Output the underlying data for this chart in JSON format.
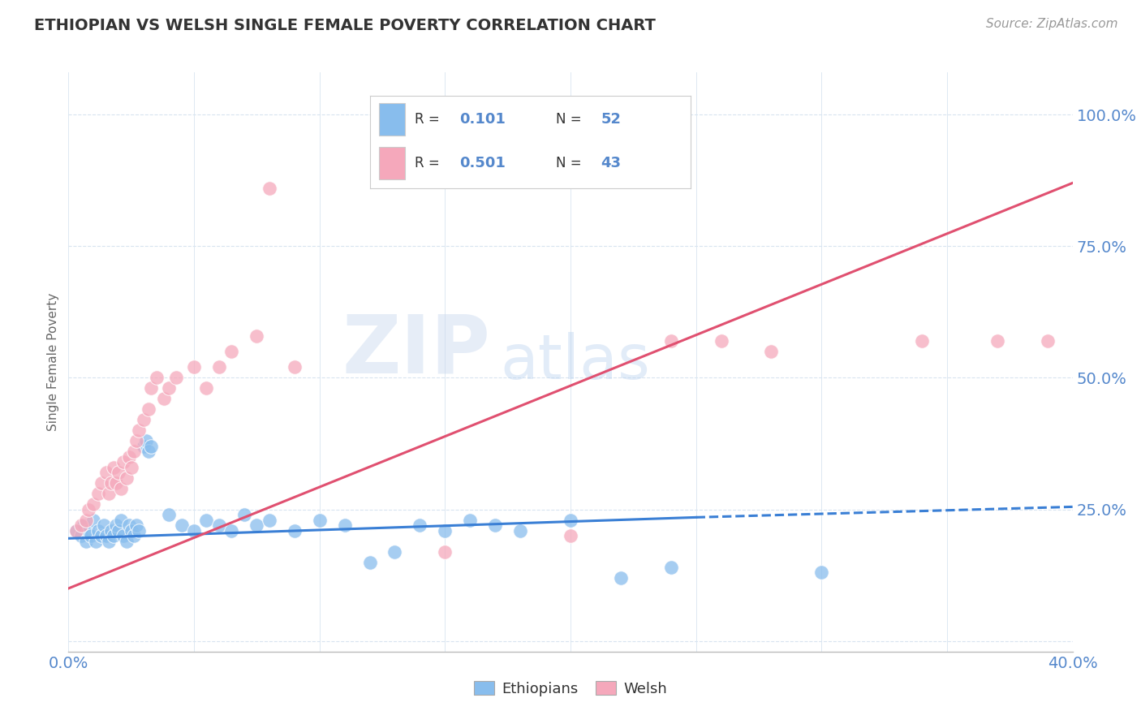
{
  "title": "ETHIOPIAN VS WELSH SINGLE FEMALE POVERTY CORRELATION CHART",
  "source": "Source: ZipAtlas.com",
  "ylabel": "Single Female Poverty",
  "xlim": [
    0.0,
    0.4
  ],
  "ylim": [
    -0.02,
    1.08
  ],
  "ytick_values": [
    0.0,
    0.25,
    0.5,
    0.75,
    1.0
  ],
  "ytick_labels": [
    "",
    "25.0%",
    "50.0%",
    "75.0%",
    "100.0%"
  ],
  "xtick_values": [
    0.0,
    0.4
  ],
  "xtick_labels": [
    "0.0%",
    "40.0%"
  ],
  "ethiopian_R": "0.101",
  "ethiopian_N": 52,
  "welsh_R": "0.501",
  "welsh_N": 43,
  "ethiopian_color": "#88bded",
  "welsh_color": "#f5a8bb",
  "ethiopian_line_color": "#3a7fd5",
  "welsh_line_color": "#e05070",
  "watermark_zip": "ZIP",
  "watermark_atlas": "atlas",
  "background_color": "#ffffff",
  "grid_color": "#d8e4f0",
  "legend_border_color": "#cccccc",
  "tick_color": "#5588cc",
  "axis_label_color": "#666666",
  "ethiopian_scatter": [
    [
      0.003,
      0.21
    ],
    [
      0.005,
      0.2
    ],
    [
      0.006,
      0.22
    ],
    [
      0.007,
      0.19
    ],
    [
      0.008,
      0.21
    ],
    [
      0.009,
      0.2
    ],
    [
      0.01,
      0.23
    ],
    [
      0.011,
      0.19
    ],
    [
      0.012,
      0.21
    ],
    [
      0.013,
      0.2
    ],
    [
      0.014,
      0.22
    ],
    [
      0.015,
      0.2
    ],
    [
      0.016,
      0.19
    ],
    [
      0.017,
      0.21
    ],
    [
      0.018,
      0.2
    ],
    [
      0.019,
      0.22
    ],
    [
      0.02,
      0.21
    ],
    [
      0.021,
      0.23
    ],
    [
      0.022,
      0.2
    ],
    [
      0.023,
      0.19
    ],
    [
      0.024,
      0.22
    ],
    [
      0.025,
      0.21
    ],
    [
      0.026,
      0.2
    ],
    [
      0.027,
      0.22
    ],
    [
      0.028,
      0.21
    ],
    [
      0.03,
      0.37
    ],
    [
      0.031,
      0.38
    ],
    [
      0.032,
      0.36
    ],
    [
      0.033,
      0.37
    ],
    [
      0.04,
      0.24
    ],
    [
      0.045,
      0.22
    ],
    [
      0.05,
      0.21
    ],
    [
      0.055,
      0.23
    ],
    [
      0.06,
      0.22
    ],
    [
      0.065,
      0.21
    ],
    [
      0.07,
      0.24
    ],
    [
      0.075,
      0.22
    ],
    [
      0.08,
      0.23
    ],
    [
      0.09,
      0.21
    ],
    [
      0.1,
      0.23
    ],
    [
      0.11,
      0.22
    ],
    [
      0.12,
      0.15
    ],
    [
      0.13,
      0.17
    ],
    [
      0.14,
      0.22
    ],
    [
      0.15,
      0.21
    ],
    [
      0.16,
      0.23
    ],
    [
      0.17,
      0.22
    ],
    [
      0.18,
      0.21
    ],
    [
      0.2,
      0.23
    ],
    [
      0.22,
      0.12
    ],
    [
      0.24,
      0.14
    ],
    [
      0.3,
      0.13
    ]
  ],
  "welsh_scatter": [
    [
      0.003,
      0.21
    ],
    [
      0.005,
      0.22
    ],
    [
      0.007,
      0.23
    ],
    [
      0.008,
      0.25
    ],
    [
      0.01,
      0.26
    ],
    [
      0.012,
      0.28
    ],
    [
      0.013,
      0.3
    ],
    [
      0.015,
      0.32
    ],
    [
      0.016,
      0.28
    ],
    [
      0.017,
      0.3
    ],
    [
      0.018,
      0.33
    ],
    [
      0.019,
      0.3
    ],
    [
      0.02,
      0.32
    ],
    [
      0.021,
      0.29
    ],
    [
      0.022,
      0.34
    ],
    [
      0.023,
      0.31
    ],
    [
      0.024,
      0.35
    ],
    [
      0.025,
      0.33
    ],
    [
      0.026,
      0.36
    ],
    [
      0.027,
      0.38
    ],
    [
      0.028,
      0.4
    ],
    [
      0.03,
      0.42
    ],
    [
      0.032,
      0.44
    ],
    [
      0.033,
      0.48
    ],
    [
      0.035,
      0.5
    ],
    [
      0.038,
      0.46
    ],
    [
      0.04,
      0.48
    ],
    [
      0.043,
      0.5
    ],
    [
      0.05,
      0.52
    ],
    [
      0.055,
      0.48
    ],
    [
      0.06,
      0.52
    ],
    [
      0.065,
      0.55
    ],
    [
      0.075,
      0.58
    ],
    [
      0.08,
      0.86
    ],
    [
      0.09,
      0.52
    ],
    [
      0.15,
      0.17
    ],
    [
      0.2,
      0.2
    ],
    [
      0.24,
      0.57
    ],
    [
      0.26,
      0.57
    ],
    [
      0.28,
      0.55
    ],
    [
      0.34,
      0.57
    ],
    [
      0.37,
      0.57
    ],
    [
      0.39,
      0.57
    ]
  ],
  "ethiopian_trendline": [
    [
      0.0,
      0.195
    ],
    [
      0.25,
      0.235
    ]
  ],
  "ethiopian_trendline_dashed": [
    [
      0.25,
      0.235
    ],
    [
      0.4,
      0.255
    ]
  ],
  "welsh_trendline": [
    [
      0.0,
      0.1
    ],
    [
      0.4,
      0.87
    ]
  ]
}
